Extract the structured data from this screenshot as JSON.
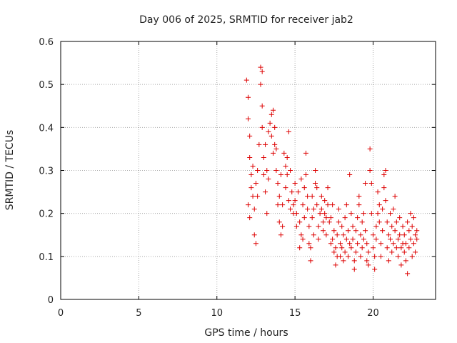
{
  "chart_data": {
    "type": "scatter",
    "title": "Day 006 of 2025, SRMTID for receiver jab2",
    "xlabel": "GPS time / hours",
    "ylabel": "SRMTID / TECUs",
    "xlim": [
      0,
      24
    ],
    "ylim": [
      0,
      0.6
    ],
    "xticks": [
      0,
      5,
      10,
      15,
      20
    ],
    "yticks": [
      0,
      0.1,
      0.2,
      0.3,
      0.4,
      0.5,
      0.6
    ],
    "xtick_labels": [
      "0",
      "5",
      "10",
      "15",
      "20"
    ],
    "ytick_labels": [
      "0",
      "0.1",
      "0.2",
      "0.3",
      "0.4",
      "0.5",
      "0.6"
    ],
    "grid": true,
    "marker": "+",
    "color": "#dd0000",
    "series": [
      {
        "name": "SRMTID",
        "points": [
          [
            11.9,
            0.51
          ],
          [
            12.0,
            0.47
          ],
          [
            12.0,
            0.42
          ],
          [
            12.1,
            0.38
          ],
          [
            12.1,
            0.33
          ],
          [
            12.2,
            0.29
          ],
          [
            12.2,
            0.26
          ],
          [
            12.0,
            0.22
          ],
          [
            12.1,
            0.19
          ],
          [
            12.3,
            0.24
          ],
          [
            12.3,
            0.31
          ],
          [
            12.4,
            0.21
          ],
          [
            12.4,
            0.15
          ],
          [
            12.5,
            0.13
          ],
          [
            12.5,
            0.27
          ],
          [
            12.6,
            0.3
          ],
          [
            12.6,
            0.24
          ],
          [
            12.7,
            0.36
          ],
          [
            12.8,
            0.54
          ],
          [
            12.8,
            0.5
          ],
          [
            12.9,
            0.45
          ],
          [
            12.9,
            0.4
          ],
          [
            12.9,
            0.53
          ],
          [
            13.0,
            0.33
          ],
          [
            13.0,
            0.29
          ],
          [
            13.1,
            0.36
          ],
          [
            13.1,
            0.25
          ],
          [
            13.2,
            0.2
          ],
          [
            13.2,
            0.3
          ],
          [
            13.3,
            0.28
          ],
          [
            13.3,
            0.39
          ],
          [
            13.4,
            0.41
          ],
          [
            13.5,
            0.43
          ],
          [
            13.5,
            0.38
          ],
          [
            13.6,
            0.44
          ],
          [
            13.6,
            0.34
          ],
          [
            13.7,
            0.4
          ],
          [
            13.7,
            0.36
          ],
          [
            13.8,
            0.35
          ],
          [
            13.8,
            0.3
          ],
          [
            13.9,
            0.27
          ],
          [
            13.9,
            0.22
          ],
          [
            14.0,
            0.24
          ],
          [
            14.0,
            0.18
          ],
          [
            14.1,
            0.29
          ],
          [
            14.1,
            0.15
          ],
          [
            14.2,
            0.22
          ],
          [
            14.2,
            0.17
          ],
          [
            14.3,
            0.34
          ],
          [
            14.4,
            0.31
          ],
          [
            14.4,
            0.26
          ],
          [
            14.5,
            0.33
          ],
          [
            14.5,
            0.29
          ],
          [
            14.6,
            0.39
          ],
          [
            14.6,
            0.23
          ],
          [
            14.7,
            0.21
          ],
          [
            14.7,
            0.3
          ],
          [
            14.8,
            0.25
          ],
          [
            14.9,
            0.22
          ],
          [
            14.9,
            0.2
          ],
          [
            15.0,
            0.27
          ],
          [
            15.0,
            0.23
          ],
          [
            15.1,
            0.17
          ],
          [
            15.1,
            0.2
          ],
          [
            15.2,
            0.25
          ],
          [
            15.3,
            0.12
          ],
          [
            15.3,
            0.18
          ],
          [
            15.4,
            0.15
          ],
          [
            15.4,
            0.28
          ],
          [
            15.5,
            0.22
          ],
          [
            15.5,
            0.14
          ],
          [
            15.6,
            0.26
          ],
          [
            15.6,
            0.19
          ],
          [
            15.7,
            0.34
          ],
          [
            15.7,
            0.29
          ],
          [
            15.8,
            0.24
          ],
          [
            15.8,
            0.21
          ],
          [
            15.9,
            0.13
          ],
          [
            15.9,
            0.17
          ],
          [
            16.0,
            0.12
          ],
          [
            16.0,
            0.09
          ],
          [
            16.1,
            0.19
          ],
          [
            16.1,
            0.24
          ],
          [
            16.2,
            0.15
          ],
          [
            16.2,
            0.21
          ],
          [
            16.3,
            0.27
          ],
          [
            16.3,
            0.3
          ],
          [
            16.4,
            0.26
          ],
          [
            16.4,
            0.22
          ],
          [
            16.5,
            0.17
          ],
          [
            16.5,
            0.14
          ],
          [
            16.6,
            0.2
          ],
          [
            16.7,
            0.24
          ],
          [
            16.7,
            0.21
          ],
          [
            16.8,
            0.18
          ],
          [
            16.8,
            0.16
          ],
          [
            16.9,
            0.23
          ],
          [
            16.9,
            0.2
          ],
          [
            17.0,
            0.19
          ],
          [
            17.0,
            0.15
          ],
          [
            17.1,
            0.26
          ],
          [
            17.1,
            0.22
          ],
          [
            17.2,
            0.18
          ],
          [
            17.3,
            0.13
          ],
          [
            17.3,
            0.19
          ],
          [
            17.4,
            0.14
          ],
          [
            17.4,
            0.22
          ],
          [
            17.5,
            0.11
          ],
          [
            17.5,
            0.16
          ],
          [
            17.6,
            0.08
          ],
          [
            17.6,
            0.12
          ],
          [
            17.7,
            0.15
          ],
          [
            17.7,
            0.1
          ],
          [
            17.8,
            0.18
          ],
          [
            17.8,
            0.21
          ],
          [
            17.9,
            0.13
          ],
          [
            17.9,
            0.1
          ],
          [
            18.0,
            0.17
          ],
          [
            18.0,
            0.12
          ],
          [
            18.1,
            0.09
          ],
          [
            18.1,
            0.15
          ],
          [
            18.2,
            0.11
          ],
          [
            18.2,
            0.19
          ],
          [
            18.3,
            0.14
          ],
          [
            18.3,
            0.22
          ],
          [
            18.4,
            0.1
          ],
          [
            18.4,
            0.16
          ],
          [
            18.5,
            0.13
          ],
          [
            18.5,
            0.29
          ],
          [
            18.6,
            0.2
          ],
          [
            18.6,
            0.12
          ],
          [
            18.7,
            0.17
          ],
          [
            18.7,
            0.14
          ],
          [
            18.8,
            0.09
          ],
          [
            18.8,
            0.07
          ],
          [
            18.9,
            0.11
          ],
          [
            18.9,
            0.16
          ],
          [
            19.0,
            0.19
          ],
          [
            19.0,
            0.13
          ],
          [
            19.1,
            0.22
          ],
          [
            19.1,
            0.24
          ],
          [
            19.2,
            0.15
          ],
          [
            19.2,
            0.1
          ],
          [
            19.3,
            0.18
          ],
          [
            19.3,
            0.12
          ],
          [
            19.4,
            0.14
          ],
          [
            19.4,
            0.2
          ],
          [
            19.5,
            0.27
          ],
          [
            19.5,
            0.16
          ],
          [
            19.6,
            0.09
          ],
          [
            19.6,
            0.13
          ],
          [
            19.7,
            0.11
          ],
          [
            19.7,
            0.08
          ],
          [
            19.8,
            0.35
          ],
          [
            19.8,
            0.3
          ],
          [
            19.9,
            0.27
          ],
          [
            19.9,
            0.2
          ],
          [
            20.0,
            0.15
          ],
          [
            20.0,
            0.12
          ],
          [
            20.1,
            0.07
          ],
          [
            20.1,
            0.1
          ],
          [
            20.2,
            0.17
          ],
          [
            20.2,
            0.14
          ],
          [
            20.3,
            0.2
          ],
          [
            20.3,
            0.25
          ],
          [
            20.4,
            0.22
          ],
          [
            20.4,
            0.18
          ],
          [
            20.5,
            0.13
          ],
          [
            20.5,
            0.1
          ],
          [
            20.6,
            0.16
          ],
          [
            20.6,
            0.21
          ],
          [
            20.7,
            0.26
          ],
          [
            20.7,
            0.29
          ],
          [
            20.8,
            0.3
          ],
          [
            20.8,
            0.23
          ],
          [
            20.9,
            0.18
          ],
          [
            20.9,
            0.12
          ],
          [
            21.0,
            0.09
          ],
          [
            21.0,
            0.15
          ],
          [
            21.1,
            0.2
          ],
          [
            21.1,
            0.14
          ],
          [
            21.2,
            0.11
          ],
          [
            21.2,
            0.17
          ],
          [
            21.3,
            0.13
          ],
          [
            21.3,
            0.21
          ],
          [
            21.4,
            0.24
          ],
          [
            21.4,
            0.16
          ],
          [
            21.5,
            0.12
          ],
          [
            21.5,
            0.18
          ],
          [
            21.6,
            0.1
          ],
          [
            21.6,
            0.14
          ],
          [
            21.7,
            0.19
          ],
          [
            21.7,
            0.15
          ],
          [
            21.8,
            0.12
          ],
          [
            21.8,
            0.08
          ],
          [
            21.9,
            0.13
          ],
          [
            21.9,
            0.17
          ],
          [
            22.0,
            0.11
          ],
          [
            22.0,
            0.15
          ],
          [
            22.1,
            0.09
          ],
          [
            22.1,
            0.13
          ],
          [
            22.2,
            0.18
          ],
          [
            22.2,
            0.06
          ],
          [
            22.3,
            0.12
          ],
          [
            22.3,
            0.16
          ],
          [
            22.4,
            0.2
          ],
          [
            22.4,
            0.14
          ],
          [
            22.5,
            0.1
          ],
          [
            22.5,
            0.17
          ],
          [
            22.6,
            0.13
          ],
          [
            22.6,
            0.19
          ],
          [
            22.7,
            0.15
          ],
          [
            22.7,
            0.11
          ],
          [
            22.8,
            0.16
          ],
          [
            22.8,
            0.14
          ]
        ]
      }
    ]
  }
}
